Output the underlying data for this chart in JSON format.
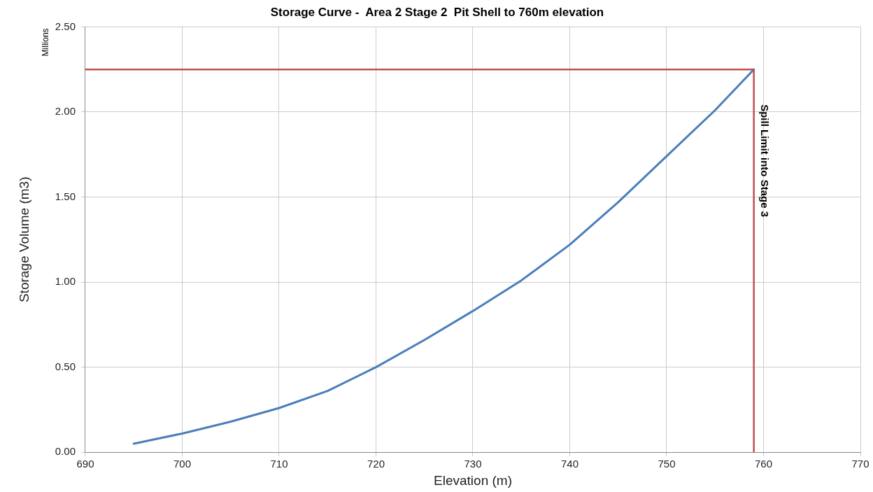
{
  "chart_data": {
    "type": "line",
    "title": "Storage Curve -  Area 2 Stage 2  Pit Shell to 760m elevation",
    "xlabel": "Elevation (m)",
    "ylabel": "Storage Volume (m3)",
    "annotations": [
      "Millions"
    ],
    "x": [
      695,
      700,
      705,
      710,
      715,
      720,
      725,
      730,
      735,
      740,
      745,
      750,
      755,
      759
    ],
    "series": [
      {
        "color": "#4a7ebb",
        "values": [
          0.05,
          0.11,
          0.18,
          0.26,
          0.36,
          0.5,
          0.66,
          0.83,
          1.01,
          1.22,
          1.47,
          1.74,
          2.01,
          2.25
        ]
      }
    ],
    "xlim": [
      690,
      770
    ],
    "xticks": [
      690,
      700,
      710,
      720,
      730,
      740,
      750,
      760,
      770
    ],
    "ylim": [
      0,
      2.5
    ],
    "yticks": [
      {
        "value": 0,
        "label": "0.00"
      },
      {
        "value": 0.5,
        "label": "0.50"
      },
      {
        "value": 1,
        "label": "1.00"
      },
      {
        "value": 1.5,
        "label": "1.50"
      },
      {
        "value": 2,
        "label": "2.00"
      },
      {
        "value": 2.5,
        "label": "2.50"
      }
    ],
    "ref_lines": [
      {
        "axis": "y",
        "value": 2.25,
        "color": "#c0504d"
      },
      {
        "axis": "x",
        "value": 759,
        "label": "Spill Limit into Stage 3",
        "color": "#c0504d"
      }
    ],
    "grid": true,
    "legend": false,
    "marker": "none",
    "line_style": "solid"
  }
}
